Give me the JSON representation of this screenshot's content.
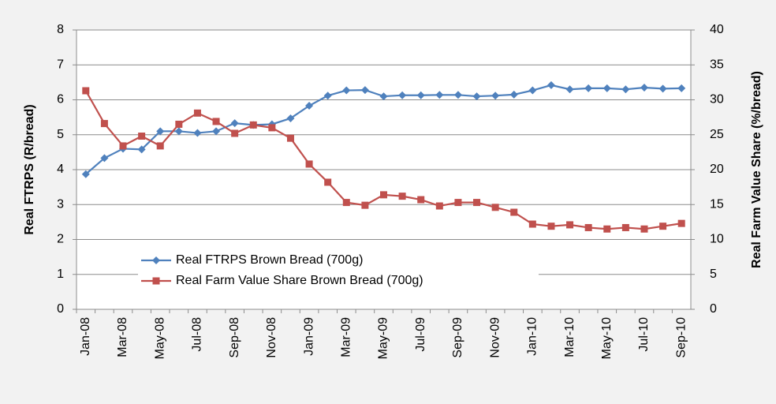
{
  "chart_data": {
    "type": "line",
    "categories": [
      "Jan-08",
      null,
      "Mar-08",
      null,
      "May-08",
      null,
      "Jul-08",
      null,
      "Sep-08",
      null,
      "Nov-08",
      null,
      "Jan-09",
      null,
      "Mar-09",
      null,
      "May-09",
      null,
      "Jul-09",
      null,
      "Sep-09",
      null,
      "Nov-09",
      null,
      "Jan-10",
      null,
      "Mar-10",
      null,
      "May-10",
      null,
      "Jul-10",
      null,
      "Sep-10"
    ],
    "series": [
      {
        "name": "Real FTRPS Brown Bread (700g)",
        "color": "#4f81bd",
        "marker": "diamond",
        "values": [
          3.87,
          4.33,
          4.6,
          4.58,
          5.1,
          5.1,
          5.05,
          5.1,
          5.33,
          5.28,
          5.3,
          5.47,
          5.83,
          6.12,
          6.27,
          6.28,
          6.1,
          6.13,
          6.13,
          6.14,
          6.14,
          6.1,
          6.12,
          6.15,
          6.27,
          6.42,
          6.3,
          6.33,
          6.33,
          6.3,
          6.35,
          6.32,
          6.33
        ]
      },
      {
        "name": "Real Farm Value Share Brown Bread (700g)",
        "color": "#c0504d",
        "marker": "square",
        "axis": "y2",
        "values": [
          31.3,
          26.6,
          23.4,
          24.8,
          23.4,
          26.5,
          28.1,
          26.9,
          25.2,
          26.4,
          26,
          24.5,
          20.8,
          18.2,
          15.3,
          14.9,
          16.4,
          16.2,
          15.7,
          14.8,
          15.3,
          15.3,
          14.6,
          13.9,
          12.2,
          11.9,
          12.1,
          11.7,
          11.5,
          11.7,
          11.5,
          11.9,
          12.3
        ]
      }
    ],
    "y_label": "Real FTRPS (R/bread)",
    "y2_label": "Real Farm Value Share (%/bread)",
    "ylim": [
      0,
      8
    ],
    "yticks": [
      0,
      1,
      2,
      3,
      4,
      5,
      6,
      7,
      8
    ],
    "y2lim": [
      0,
      40
    ],
    "y2ticks": [
      0,
      5,
      10,
      15,
      20,
      25,
      30,
      35,
      40
    ],
    "grid": true,
    "legend": "lower-left"
  }
}
